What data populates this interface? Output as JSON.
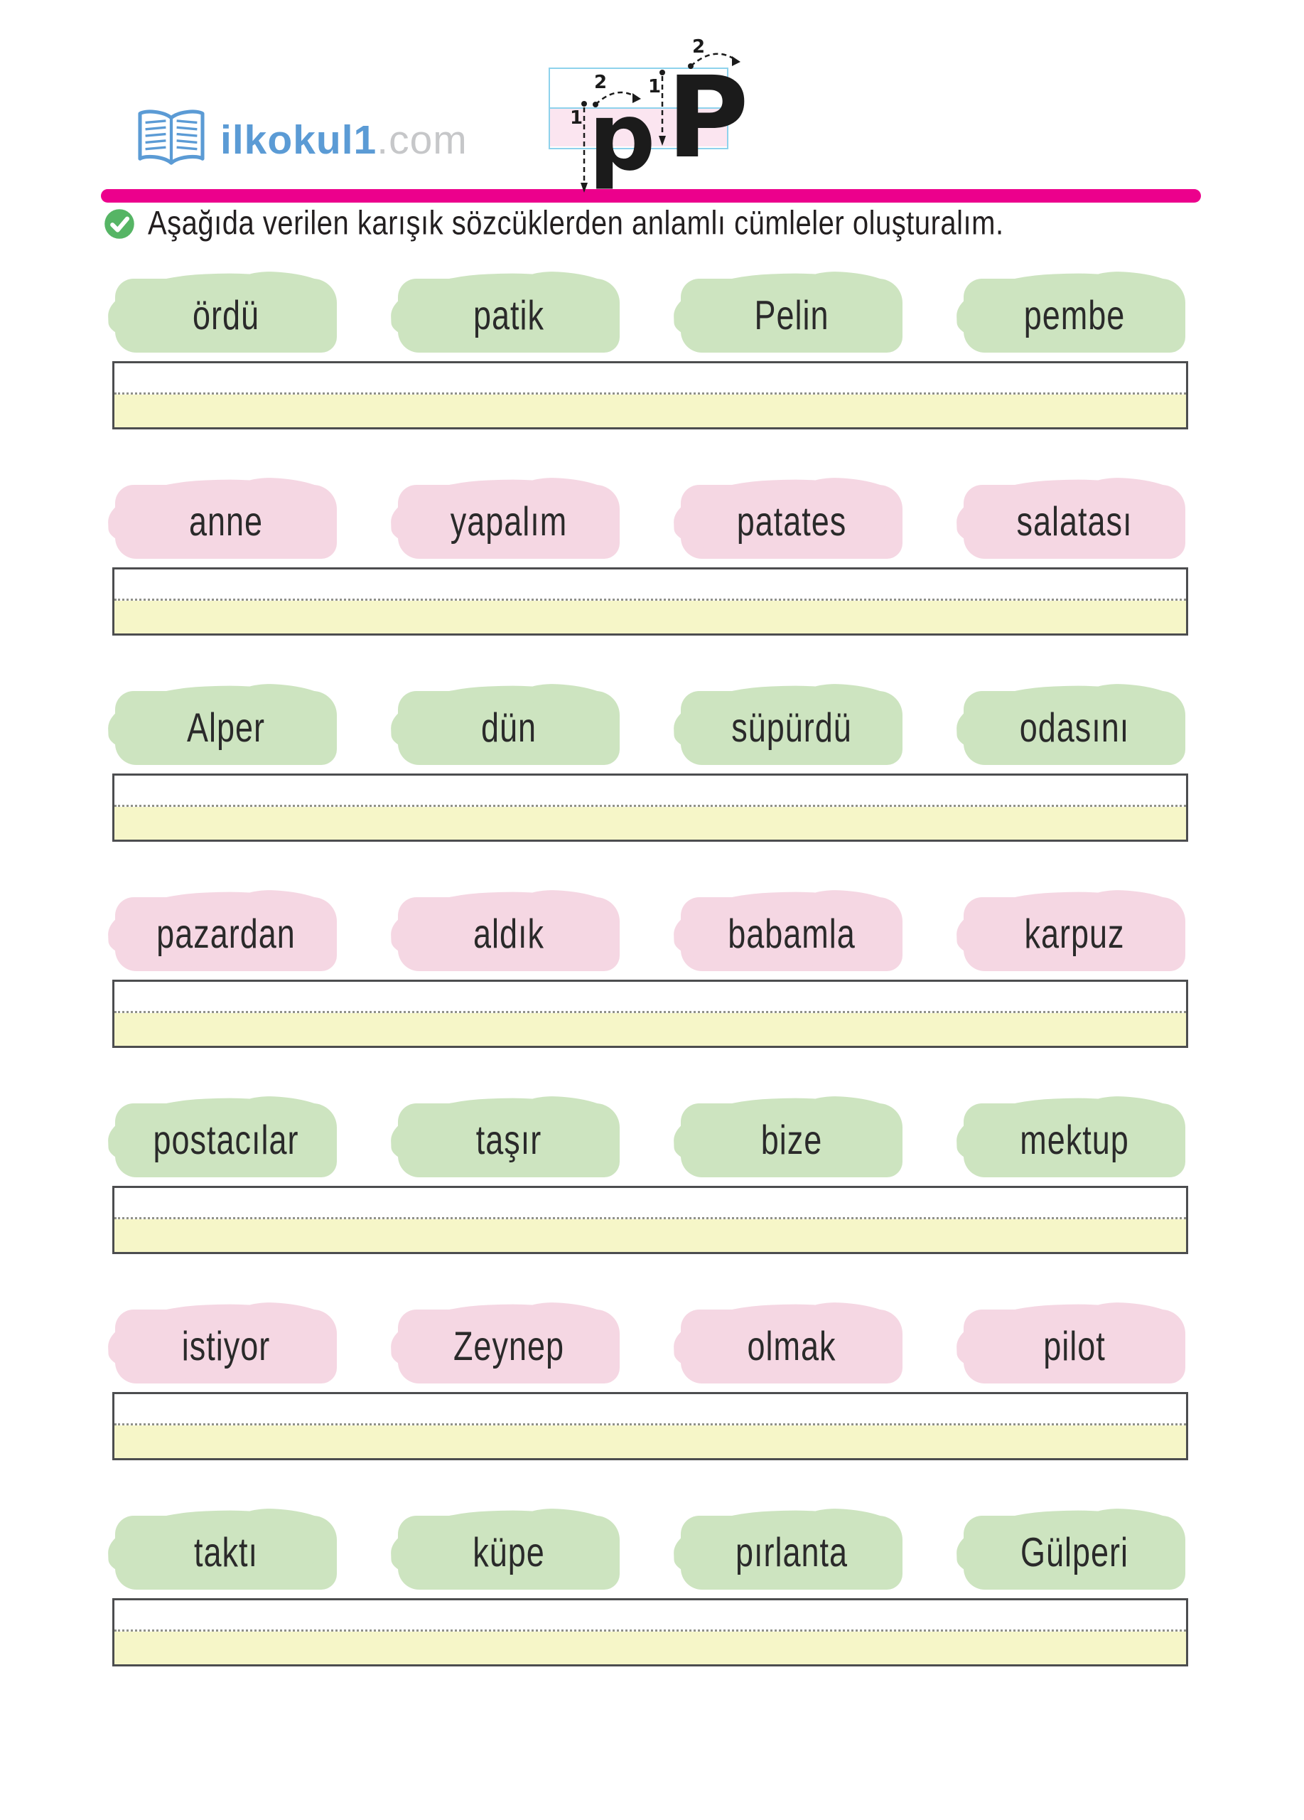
{
  "header": {
    "logo": {
      "site_name": "ilkokul1",
      "domain_suffix": ".com"
    },
    "letter_practice": {
      "lowercase": "p",
      "uppercase": "P",
      "stroke1": "1",
      "stroke2": "2"
    }
  },
  "instruction": {
    "text": "Aşağıda verilen karışık sözcüklerden anlamlı cümleler oluşturalım."
  },
  "rows": [
    {
      "color": "green",
      "words": [
        "ördü",
        "patik",
        "Pelin",
        "pembe"
      ]
    },
    {
      "color": "pink",
      "words": [
        "anne",
        "yapalım",
        "patates",
        "salatası"
      ]
    },
    {
      "color": "green",
      "words": [
        "Alper",
        "dün",
        "süpürdü",
        "odasını"
      ]
    },
    {
      "color": "pink",
      "words": [
        "pazardan",
        "aldık",
        "babamla",
        "karpuz"
      ]
    },
    {
      "color": "green",
      "words": [
        "postacılar",
        "taşır",
        "bize",
        "mektup"
      ]
    },
    {
      "color": "pink",
      "words": [
        "istiyor",
        "Zeynep",
        "olmak",
        "pilot"
      ]
    },
    {
      "color": "green",
      "words": [
        "taktı",
        "küpe",
        "pırlanta",
        "Gülperi"
      ]
    }
  ],
  "colors": {
    "green_blob": "#cde4c0",
    "pink_blob": "#f5d7e3",
    "writing_line_yellow": "#f6f6c8",
    "writing_line_border": "#4c4d4f",
    "divider_magenta": "#ec008c",
    "letterbox_border_blue": "#8ed2ec",
    "letterbox_pink": "#fbe5f0",
    "logo_blue": "#5b9bd5",
    "logo_gray": "#c6c7c9",
    "check_green": "#56b565"
  },
  "icons": {
    "logo_book": "open-book-icon",
    "instruction_check": "checkmark-circle-icon"
  }
}
